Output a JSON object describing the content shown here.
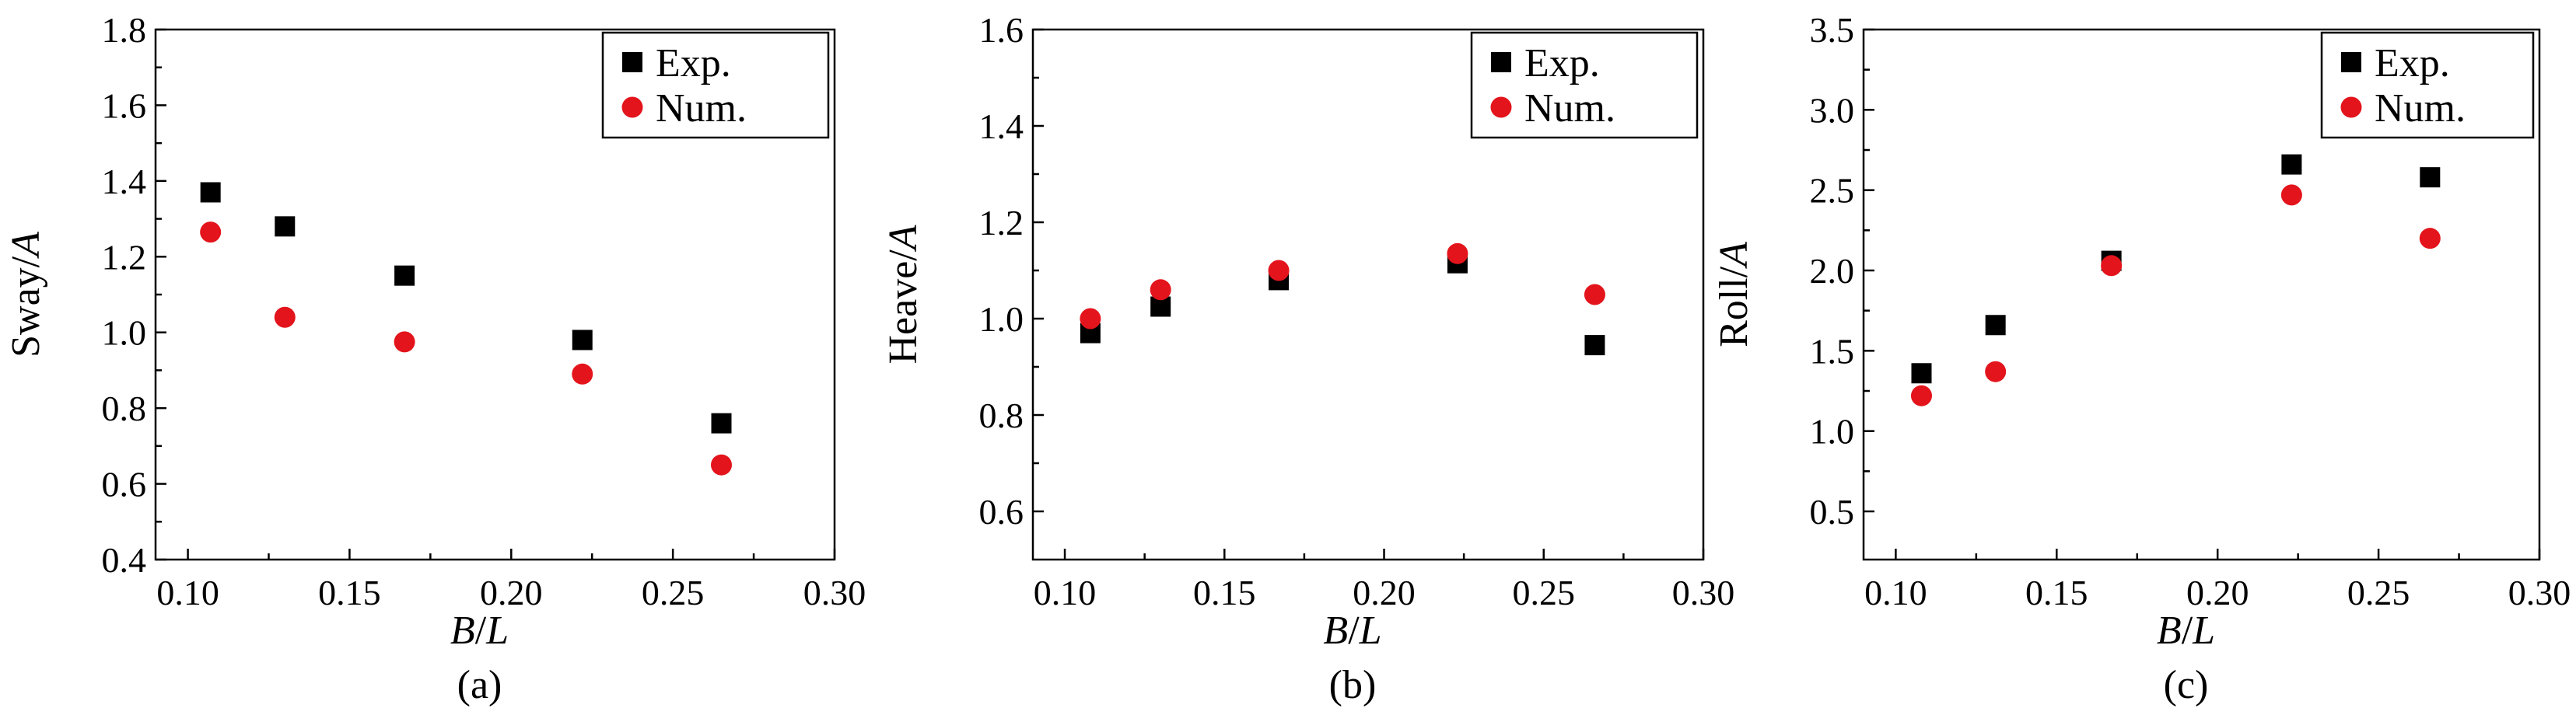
{
  "colors": {
    "exp": "#000000",
    "num": "#e3141b"
  },
  "chart_data": [
    {
      "type": "scatter",
      "caption": "(a)",
      "xlabel_parts": [
        "B",
        "/",
        "L"
      ],
      "ylabel_parts": [
        "Sway/",
        "A"
      ],
      "xlim": [
        0.09,
        0.3
      ],
      "ylim": [
        0.4,
        1.8
      ],
      "xticks": [
        0.1,
        0.15,
        0.2,
        0.25,
        0.3
      ],
      "xtick_labels": [
        "0.10",
        "0.15",
        "0.20",
        "0.25",
        "0.30"
      ],
      "yticks": [
        0.4,
        0.6,
        0.8,
        1.0,
        1.2,
        1.4,
        1.6,
        1.8
      ],
      "ytick_labels": [
        "0.4",
        "0.6",
        "0.8",
        "1.0",
        "1.2",
        "1.4",
        "1.6",
        "1.8"
      ],
      "legend_position": "top-right",
      "grid": false,
      "series": [
        {
          "name": "Exp.",
          "marker": "square",
          "x": [
            0.107,
            0.13,
            0.167,
            0.222,
            0.265
          ],
          "y": [
            1.37,
            1.28,
            1.15,
            0.98,
            0.76
          ]
        },
        {
          "name": "Num.",
          "marker": "circle",
          "x": [
            0.107,
            0.13,
            0.167,
            0.222,
            0.265
          ],
          "y": [
            1.265,
            1.04,
            0.975,
            0.89,
            0.65
          ]
        }
      ]
    },
    {
      "type": "scatter",
      "caption": "(b)",
      "xlabel_parts": [
        "B",
        "/",
        "L"
      ],
      "ylabel_parts": [
        "Heave/",
        "A"
      ],
      "xlim": [
        0.09,
        0.3
      ],
      "ylim": [
        0.5,
        1.6
      ],
      "xticks": [
        0.1,
        0.15,
        0.2,
        0.25,
        0.3
      ],
      "xtick_labels": [
        "0.10",
        "0.15",
        "0.20",
        "0.25",
        "0.30"
      ],
      "yticks": [
        0.6,
        0.8,
        1.0,
        1.2,
        1.4,
        1.6
      ],
      "ytick_labels": [
        "0.6",
        "0.8",
        "1.0",
        "1.2",
        "1.4",
        "1.6"
      ],
      "legend_position": "top-right",
      "grid": false,
      "series": [
        {
          "name": "Exp.",
          "marker": "square",
          "x": [
            0.108,
            0.13,
            0.167,
            0.223,
            0.266
          ],
          "y": [
            0.97,
            1.025,
            1.08,
            1.115,
            0.945
          ]
        },
        {
          "name": "Num.",
          "marker": "circle",
          "x": [
            0.108,
            0.13,
            0.167,
            0.223,
            0.266
          ],
          "y": [
            1.0,
            1.06,
            1.1,
            1.135,
            1.05
          ]
        }
      ]
    },
    {
      "type": "scatter",
      "caption": "(c)",
      "xlabel_parts": [
        "B",
        "/",
        "L"
      ],
      "ylabel_parts": [
        "Roll/",
        "A"
      ],
      "xlim": [
        0.09,
        0.3
      ],
      "ylim": [
        0.2,
        3.5
      ],
      "xticks": [
        0.1,
        0.15,
        0.2,
        0.25,
        0.3
      ],
      "xtick_labels": [
        "0.10",
        "0.15",
        "0.20",
        "0.25",
        "0.30"
      ],
      "yticks": [
        0.5,
        1.0,
        1.5,
        2.0,
        2.5,
        3.0,
        3.5
      ],
      "ytick_labels": [
        "0.5",
        "1.0",
        "1.5",
        "2.0",
        "2.5",
        "3.0",
        "3.5"
      ],
      "legend_position": "top-right",
      "grid": false,
      "series": [
        {
          "name": "Exp.",
          "marker": "square",
          "x": [
            0.108,
            0.131,
            0.167,
            0.223,
            0.266
          ],
          "y": [
            1.36,
            1.66,
            2.06,
            2.66,
            2.58
          ]
        },
        {
          "name": "Num.",
          "marker": "circle",
          "x": [
            0.108,
            0.131,
            0.167,
            0.223,
            0.266
          ],
          "y": [
            1.22,
            1.37,
            2.03,
            2.47,
            2.2
          ]
        }
      ]
    }
  ]
}
